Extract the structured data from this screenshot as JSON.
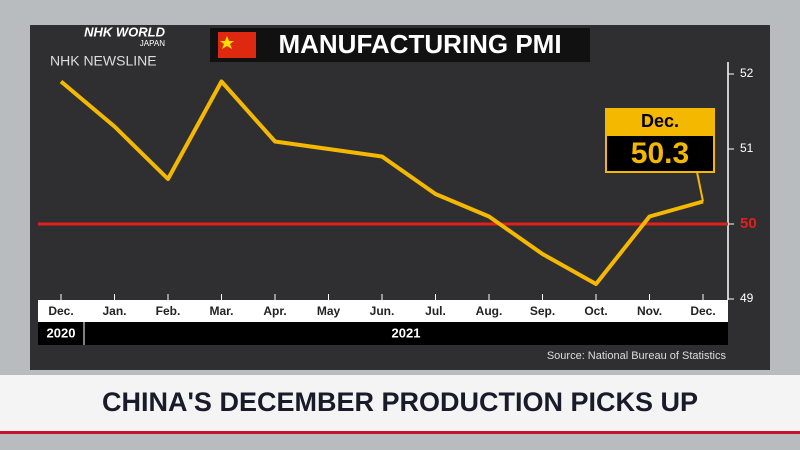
{
  "broadcast": {
    "logo": "NHK WORLD",
    "logo_sub": "JAPAN",
    "program": "NHK NEWSLINE",
    "headline": "CHINA'S DECEMBER PRODUCTION PICKS UP"
  },
  "chart_data": {
    "type": "line",
    "title": "MANUFACTURING PMI",
    "categories": [
      "Dec.",
      "Jan.",
      "Feb.",
      "Mar.",
      "Apr.",
      "May",
      "Jun.",
      "Jul.",
      "Aug.",
      "Sep.",
      "Oct.",
      "Nov.",
      "Dec."
    ],
    "years": [
      "2020",
      "2021"
    ],
    "values": [
      51.9,
      51.3,
      50.6,
      51.9,
      51.1,
      51.0,
      50.9,
      50.4,
      50.1,
      49.6,
      49.2,
      50.1,
      50.3
    ],
    "color": "#f5b800",
    "ylim": [
      49,
      52
    ],
    "yticks": [
      49,
      50,
      51,
      52
    ],
    "threshold": {
      "value": 50,
      "color": "#e0201c"
    },
    "source": "Source: National Bureau of Statistics"
  }
}
